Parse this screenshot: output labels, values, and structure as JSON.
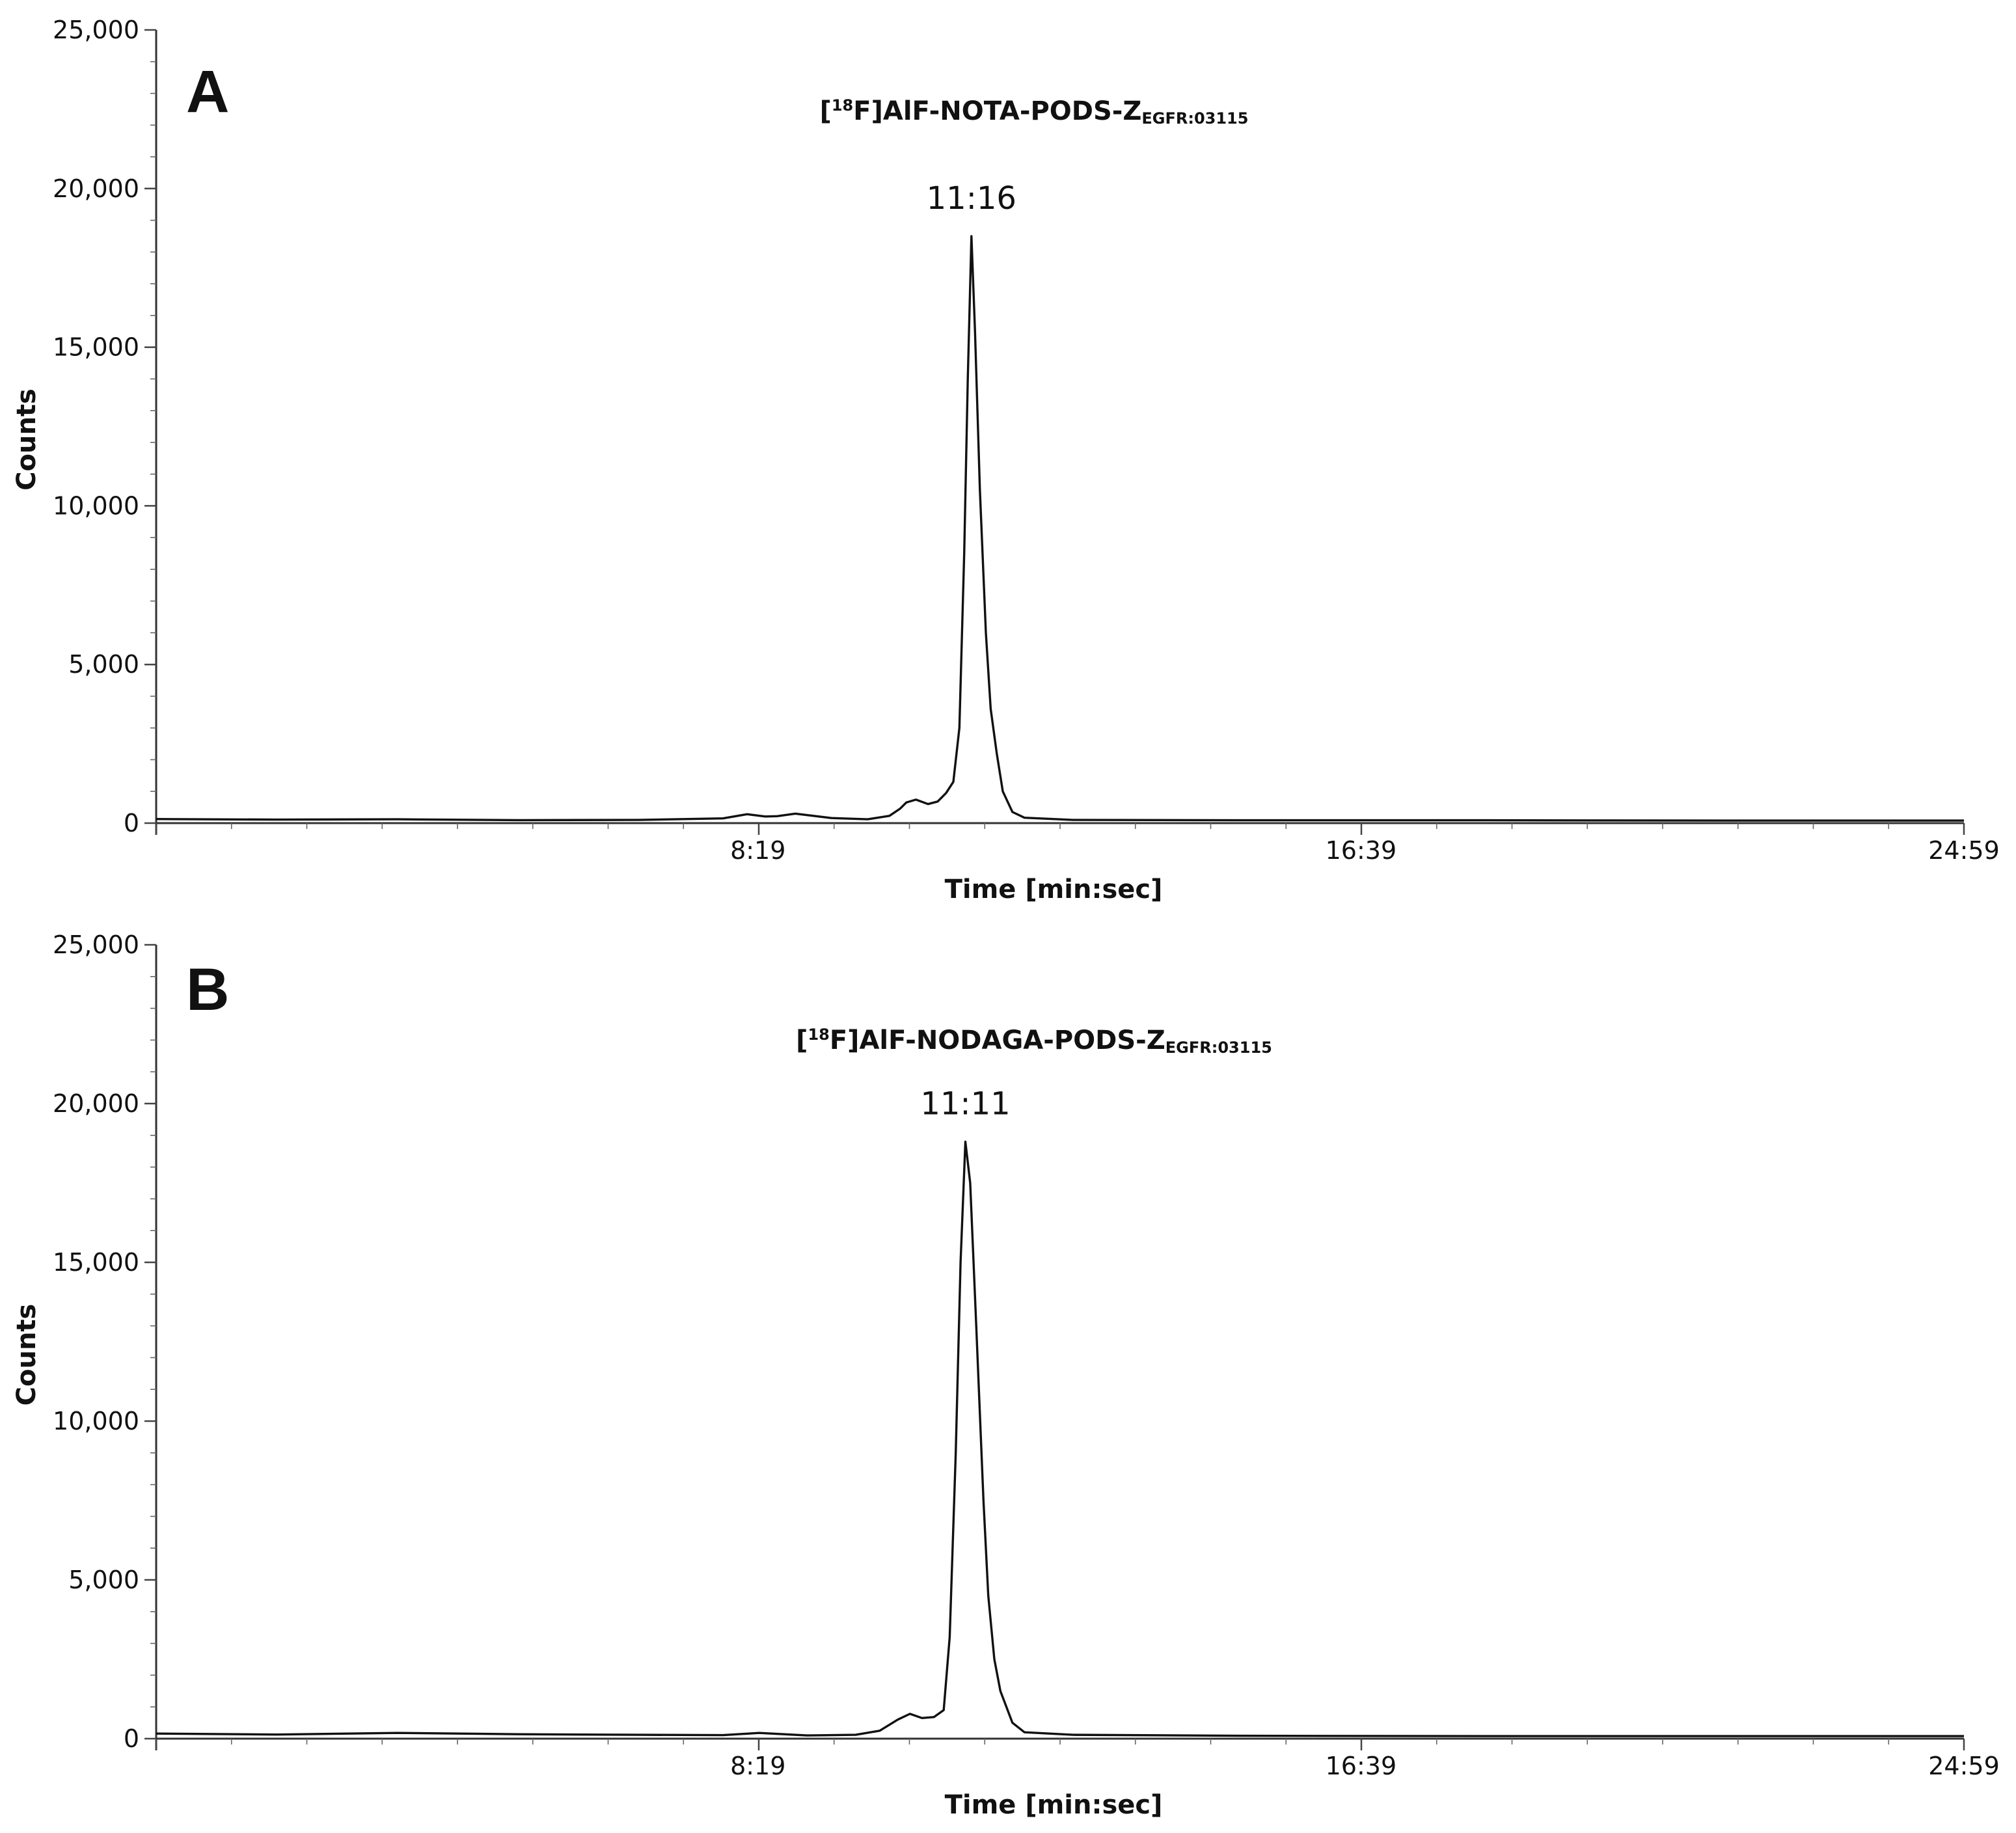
{
  "chart_data": [
    {
      "type": "line",
      "panel_label": "A",
      "title": {
        "prefix": "[",
        "sup": "18",
        "main": "F]AlF-NOTA-PODS-Z",
        "sub": "EGFR:03115"
      },
      "xlabel": "Time [min:sec]",
      "ylabel": "Counts",
      "xlim": [
        0,
        1499
      ],
      "ylim": [
        0,
        25000
      ],
      "x_ticks": [
        {
          "value": 499,
          "label": "8:19"
        },
        {
          "value": 999,
          "label": "16:39"
        },
        {
          "value": 1499,
          "label": "24:59"
        }
      ],
      "y_ticks": [
        {
          "value": 0,
          "label": "0"
        },
        {
          "value": 5000,
          "label": "5,000"
        },
        {
          "value": 10000,
          "label": "10,000"
        },
        {
          "value": 15000,
          "label": "15,000"
        },
        {
          "value": 20000,
          "label": "20,000"
        },
        {
          "value": 25000,
          "label": "25,000"
        }
      ],
      "peak": {
        "x": 676,
        "y": 18500,
        "label": "11:16"
      },
      "series": [
        {
          "x": [
            0,
            100,
            200,
            300,
            400,
            470,
            490,
            505,
            515,
            530,
            560,
            590,
            608,
            617,
            622,
            630,
            640,
            648,
            655,
            661,
            666,
            670,
            673,
            676,
            679,
            683,
            688,
            692,
            697,
            702,
            710,
            720,
            760,
            900,
            1100,
            1300,
            1499
          ],
          "values": [
            130,
            110,
            120,
            95,
            100,
            150,
            280,
            210,
            220,
            300,
            160,
            120,
            230,
            460,
            650,
            740,
            600,
            680,
            950,
            1300,
            3000,
            8500,
            14000,
            18500,
            15500,
            10500,
            6000,
            3600,
            2200,
            1000,
            350,
            170,
            100,
            90,
            90,
            80,
            80
          ]
        }
      ]
    },
    {
      "type": "line",
      "panel_label": "B",
      "title": {
        "prefix": "[",
        "sup": "18",
        "main": "F]AlF-NODAGA-PODS-Z",
        "sub": "EGFR:03115"
      },
      "xlabel": "Time [min:sec]",
      "ylabel": "Counts",
      "xlim": [
        0,
        1499
      ],
      "ylim": [
        0,
        25000
      ],
      "x_ticks": [
        {
          "value": 499,
          "label": "8:19"
        },
        {
          "value": 999,
          "label": "16:39"
        },
        {
          "value": 1499,
          "label": "24:59"
        }
      ],
      "y_ticks": [
        {
          "value": 0,
          "label": "0"
        },
        {
          "value": 5000,
          "label": "5,000"
        },
        {
          "value": 10000,
          "label": "10,000"
        },
        {
          "value": 15000,
          "label": "15,000"
        },
        {
          "value": 20000,
          "label": "20,000"
        },
        {
          "value": 25000,
          "label": "25,000"
        }
      ],
      "peak": {
        "x": 671,
        "y": 18800,
        "label": "11:11"
      },
      "series": [
        {
          "x": [
            0,
            100,
            200,
            300,
            400,
            470,
            500,
            540,
            580,
            600,
            615,
            625,
            635,
            645,
            653,
            658,
            663,
            667,
            671,
            675,
            680,
            686,
            690,
            695,
            700,
            710,
            720,
            760,
            900,
            1100,
            1300,
            1499
          ],
          "values": [
            160,
            130,
            180,
            140,
            120,
            110,
            180,
            100,
            120,
            250,
            600,
            780,
            650,
            680,
            900,
            3200,
            9000,
            15000,
            18800,
            17500,
            13000,
            7500,
            4500,
            2500,
            1500,
            500,
            200,
            120,
            90,
            80,
            80,
            80
          ]
        }
      ]
    }
  ]
}
